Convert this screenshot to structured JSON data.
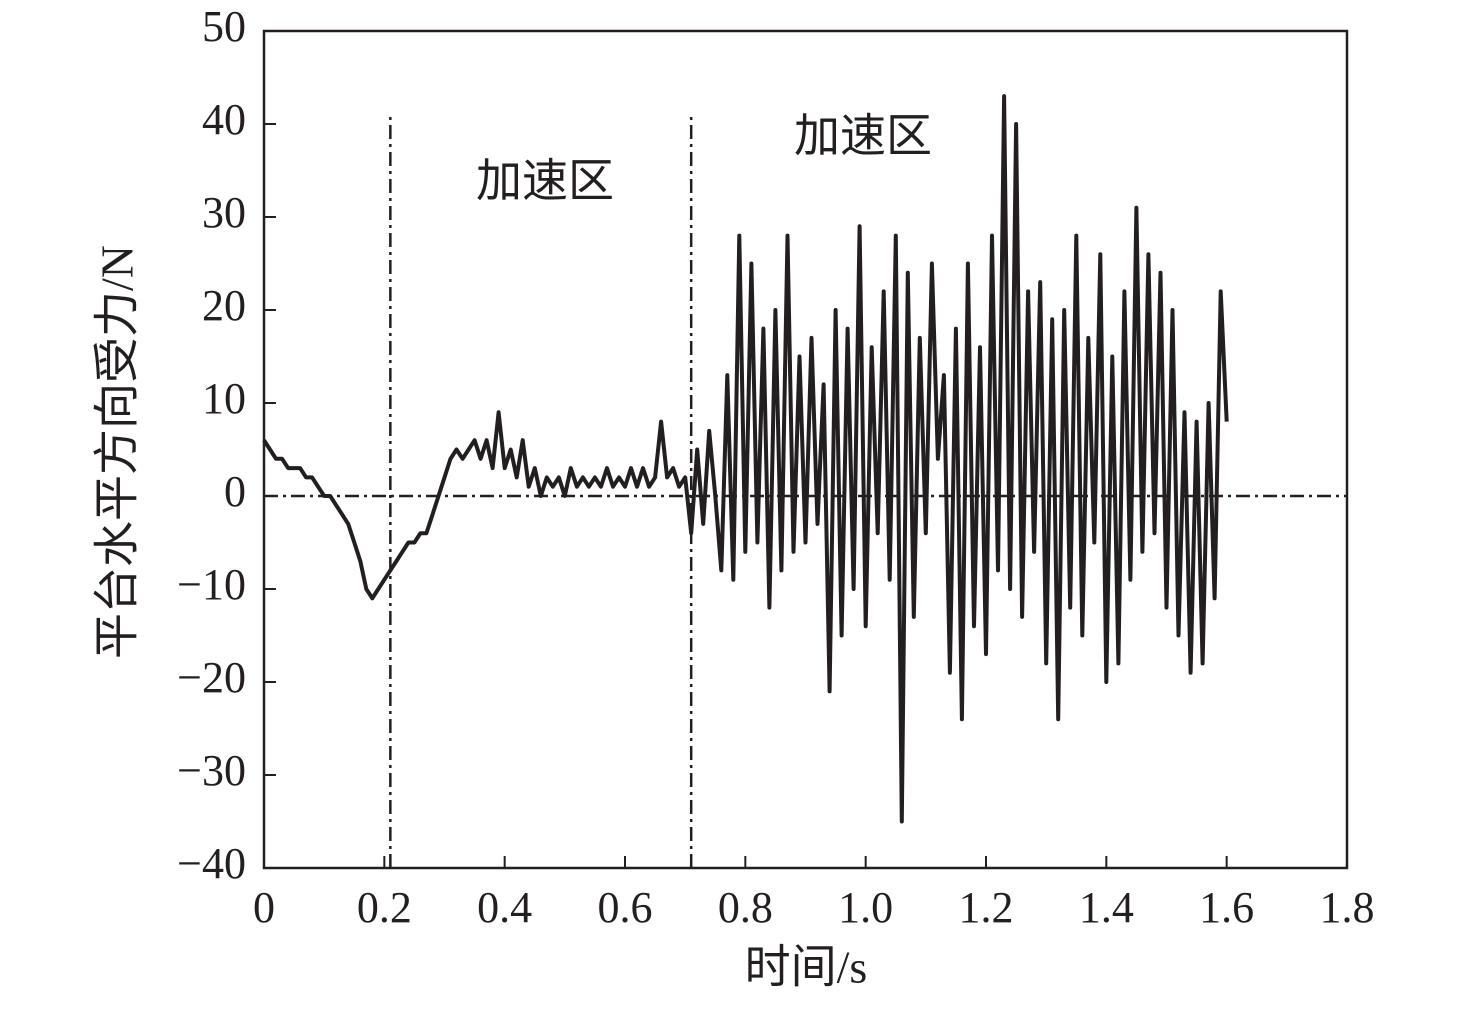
{
  "chart_data": {
    "type": "line",
    "xlabel": "时间/s",
    "ylabel": "平台水平方向受力/N",
    "annotations": [
      "加速区",
      "加速区"
    ],
    "color": "#231f20",
    "xlim": [
      0,
      1.8
    ],
    "ylim": [
      -40,
      50
    ],
    "xticks": [
      0,
      0.2,
      0.4,
      0.6,
      0.8,
      {
        "value": 1,
        "label": "1.0"
      },
      1.2,
      1.4,
      1.6,
      1.8
    ],
    "yticks": [
      {
        "value": -40,
        "label": "−40"
      },
      {
        "value": -30,
        "label": "−30"
      },
      {
        "value": -20,
        "label": "−20"
      },
      {
        "value": -10,
        "label": "−10"
      },
      0,
      10,
      20,
      30,
      40,
      50
    ],
    "hline": 0,
    "vlines": [
      0.21,
      0.71
    ],
    "vline_top": 41,
    "x": [
      0,
      0.01,
      0.02,
      0.03,
      0.04,
      0.05,
      0.06,
      0.07,
      0.08,
      0.09,
      0.1,
      0.11,
      0.12,
      0.13,
      0.14,
      0.15,
      0.16,
      0.17,
      0.18,
      0.19,
      0.2,
      0.21,
      0.22,
      0.23,
      0.24,
      0.25,
      0.26,
      0.27,
      0.28,
      0.29,
      0.3,
      0.31,
      0.32,
      0.33,
      0.34,
      0.35,
      0.36,
      0.37,
      0.38,
      0.39,
      0.4,
      0.41,
      0.42,
      0.43,
      0.44,
      0.45,
      0.46,
      0.47,
      0.48,
      0.49,
      0.5,
      0.51,
      0.52,
      0.53,
      0.54,
      0.55,
      0.56,
      0.57,
      0.58,
      0.59,
      0.6,
      0.61,
      0.62,
      0.63,
      0.64,
      0.65,
      0.66,
      0.67,
      0.68,
      0.69,
      0.7,
      0.71,
      0.72,
      0.73,
      0.74,
      0.75,
      0.76,
      0.77,
      0.78,
      0.79,
      0.8,
      0.81,
      0.82,
      0.83,
      0.84,
      0.85,
      0.86,
      0.87,
      0.88,
      0.89,
      0.9,
      0.91,
      0.92,
      0.93,
      0.94,
      0.95,
      0.96,
      0.97,
      0.98,
      0.99,
      1,
      1.01,
      1.02,
      1.03,
      1.04,
      1.05,
      1.06,
      1.07,
      1.08,
      1.09,
      1.1,
      1.11,
      1.12,
      1.13,
      1.14,
      1.15,
      1.16,
      1.17,
      1.18,
      1.19,
      1.2,
      1.21,
      1.22,
      1.23,
      1.24,
      1.25,
      1.26,
      1.27,
      1.28,
      1.29,
      1.3,
      1.31,
      1.32,
      1.33,
      1.34,
      1.35,
      1.36,
      1.37,
      1.38,
      1.39,
      1.4,
      1.41,
      1.42,
      1.43,
      1.44,
      1.45,
      1.46,
      1.47,
      1.48,
      1.49,
      1.5,
      1.51,
      1.52,
      1.53,
      1.54,
      1.55,
      1.56,
      1.57,
      1.58,
      1.59,
      1.6
    ],
    "values": [
      6,
      5,
      4,
      4,
      3,
      3,
      3,
      2,
      2,
      1,
      0,
      0,
      -1,
      -2,
      -3,
      -5,
      -7,
      -10,
      -11,
      -10,
      -9,
      -8,
      -7,
      -6,
      -5,
      -5,
      -4,
      -4,
      -2,
      0,
      2,
      4,
      5,
      4,
      5,
      6,
      4,
      6,
      3,
      9,
      3,
      5,
      2,
      6,
      1,
      3,
      0,
      2,
      1,
      2,
      0,
      3,
      1,
      2,
      1,
      2,
      1,
      3,
      1,
      2,
      1,
      3,
      1,
      3,
      1,
      2,
      8,
      2,
      3,
      1,
      2,
      -4,
      5,
      -3,
      7,
      0,
      -8,
      13,
      -9,
      28,
      -6,
      25,
      -5,
      18,
      -12,
      20,
      -8,
      28,
      -6,
      15,
      -5,
      17,
      -3,
      12,
      -21,
      20,
      -15,
      18,
      -10,
      29,
      -14,
      16,
      -4,
      22,
      -9,
      28,
      -35,
      24,
      -13,
      17,
      -4,
      25,
      4,
      13,
      -19,
      18,
      -24,
      25,
      -14,
      16,
      -17,
      28,
      -8,
      43,
      -10,
      40,
      -13,
      22,
      -6,
      23,
      -18,
      19,
      -24,
      20,
      -12,
      28,
      -15,
      17,
      -5,
      26,
      -20,
      15,
      -18,
      22,
      -9,
      31,
      -6,
      26,
      -4,
      24,
      -12,
      20,
      -15,
      9,
      -19,
      8,
      -18,
      10,
      -11,
      22,
      8
    ]
  }
}
